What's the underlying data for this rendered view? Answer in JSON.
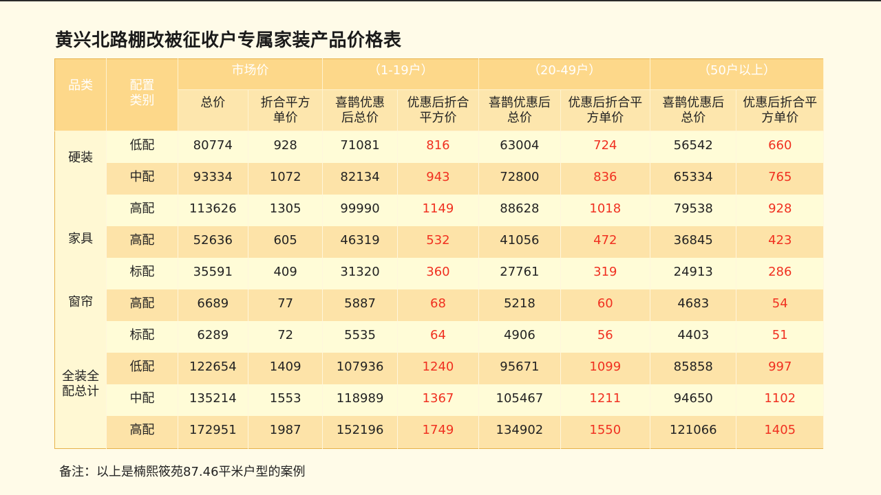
{
  "title": "黄兴北路棚改被征收户专属家装产品价格表",
  "note": "备注：以上是楠熙筱苑87.46平米户型的案例",
  "header": {
    "category": "品类",
    "config": "配置类别",
    "groups": [
      "市场价",
      "（1-19户）",
      "（20-49户）",
      "（50户以上）"
    ],
    "sub": [
      "总价",
      "折合平方单价",
      "喜鹊优惠后总价",
      "优惠后折合平方价",
      "喜鹊优惠后总价",
      "优惠后折合平方单价",
      "喜鹊优惠后总价",
      "优惠后折合平方单价"
    ]
  },
  "rows": [
    {
      "category": "硬装",
      "config": "低配",
      "values": [
        "80774",
        "928",
        "71081",
        "816",
        "63004",
        "724",
        "56542",
        "660"
      ]
    },
    {
      "category": "",
      "config": "中配",
      "values": [
        "93334",
        "1072",
        "82134",
        "943",
        "72800",
        "836",
        "65334",
        "765"
      ]
    },
    {
      "category": "",
      "config": "高配",
      "values": [
        "113626",
        "1305",
        "99990",
        "1149",
        "88628",
        "1018",
        "79538",
        "928"
      ]
    },
    {
      "category": "家具",
      "config": "高配",
      "values": [
        "52636",
        "605",
        "46319",
        "532",
        "41056",
        "472",
        "36845",
        "423"
      ]
    },
    {
      "category": "",
      "config": "标配",
      "values": [
        "35591",
        "409",
        "31320",
        "360",
        "27761",
        "319",
        "24913",
        "286"
      ]
    },
    {
      "category": "窗帘",
      "config": "高配",
      "values": [
        "6689",
        "77",
        "5887",
        "68",
        "5218",
        "60",
        "4683",
        "54"
      ]
    },
    {
      "category": "",
      "config": "标配",
      "values": [
        "6289",
        "72",
        "5535",
        "64",
        "4906",
        "56",
        "4403",
        "51"
      ]
    },
    {
      "category": "全装全配总计",
      "config": "低配",
      "values": [
        "122654",
        "1409",
        "107936",
        "1240",
        "95671",
        "1099",
        "85858",
        "997"
      ]
    },
    {
      "category": "",
      "config": "中配",
      "values": [
        "135214",
        "1553",
        "118989",
        "1367",
        "105467",
        "1211",
        "94650",
        "1102"
      ]
    },
    {
      "category": "",
      "config": "高配",
      "values": [
        "172951",
        "1987",
        "152196",
        "1749",
        "134902",
        "1550",
        "121066",
        "1405"
      ]
    }
  ],
  "colors": {
    "accent_red": "#f03020",
    "header": "#fdd88a",
    "alt_row": "#fde3a8",
    "plain_row": "#fffcd7"
  }
}
